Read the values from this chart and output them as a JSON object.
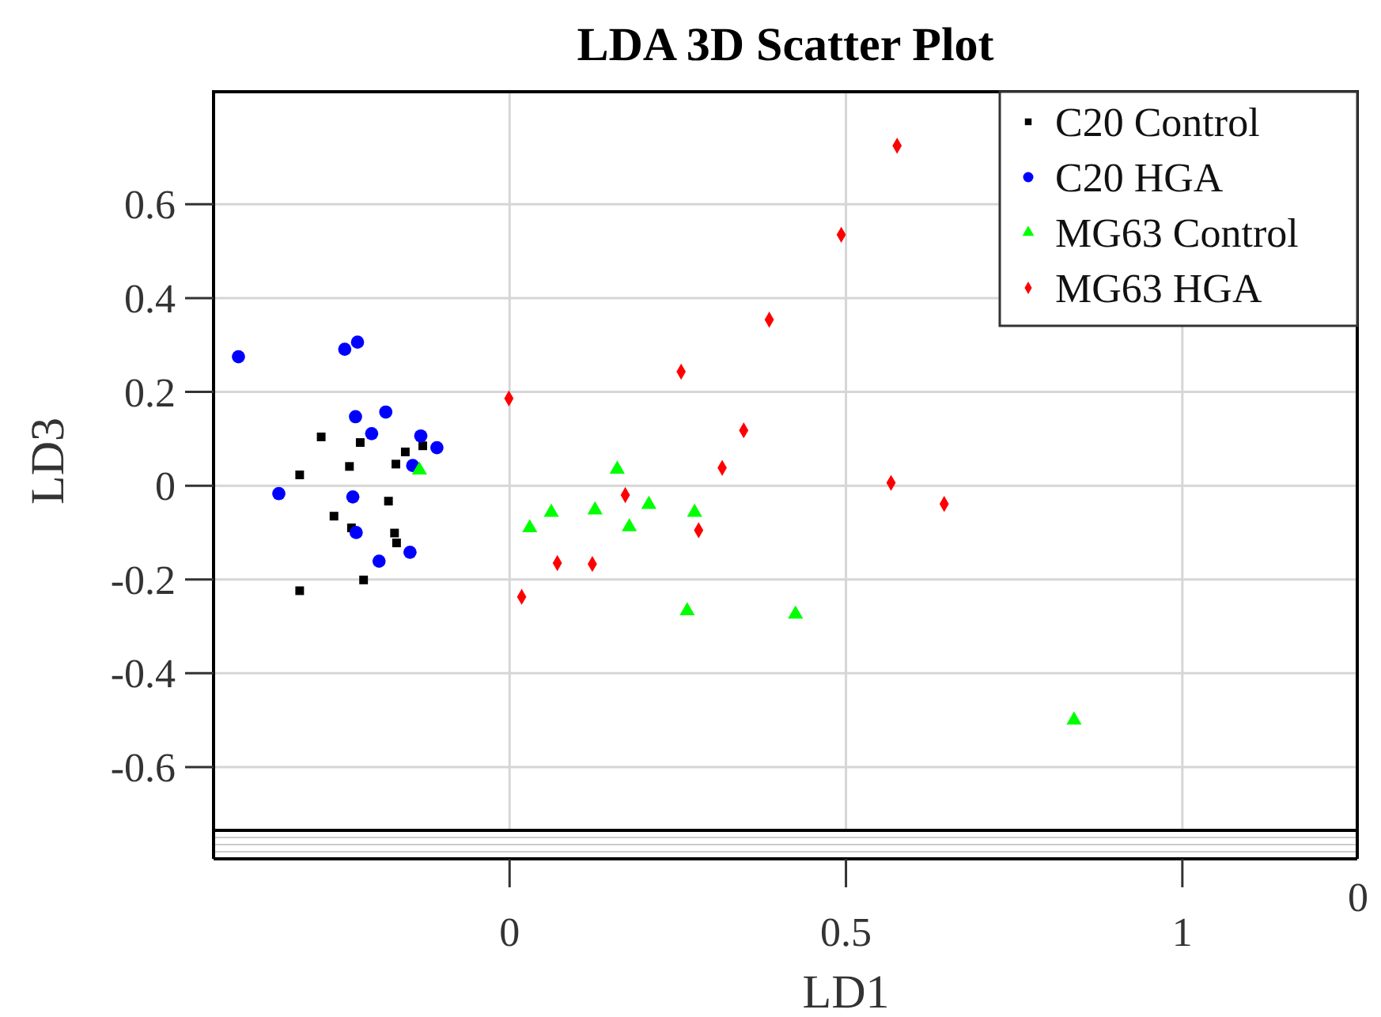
{
  "chart_data": {
    "type": "scatter",
    "title": "LDA 3D Scatter Plot",
    "xlabel": "LD1",
    "ylabel": "LD3",
    "xlim": [
      -0.44,
      1.26
    ],
    "ylim": [
      -0.735,
      0.84
    ],
    "xticks": [
      0,
      0.5,
      1
    ],
    "yticks": [
      -0.6,
      -0.4,
      -0.2,
      0,
      0.2,
      0.4,
      0.6
    ],
    "grid": true,
    "legend": "top right",
    "annotations": [
      "0"
    ],
    "series": [
      {
        "name": "C20 Control",
        "color": "#000000",
        "marker": "square",
        "x": [
          -0.28,
          -0.222,
          -0.155,
          -0.129,
          -0.312,
          -0.238,
          -0.169,
          -0.18,
          -0.261,
          -0.235,
          -0.171,
          -0.168,
          -0.217,
          -0.312
        ],
        "values": [
          0.104,
          0.092,
          0.072,
          0.085,
          0.023,
          0.041,
          0.046,
          -0.033,
          -0.065,
          -0.09,
          -0.101,
          -0.122,
          -0.201,
          -0.224
        ]
      },
      {
        "name": "C20 HGA",
        "color": "#0000ff",
        "marker": "circle",
        "x": [
          -0.403,
          -0.245,
          -0.226,
          -0.229,
          -0.184,
          -0.205,
          -0.132,
          -0.108,
          -0.144,
          -0.343,
          -0.233,
          -0.228,
          -0.148,
          -0.194
        ],
        "values": [
          0.275,
          0.291,
          0.306,
          0.147,
          0.157,
          0.111,
          0.106,
          0.081,
          0.043,
          -0.017,
          -0.024,
          -0.1,
          -0.142,
          -0.161
        ]
      },
      {
        "name": "MG63 Control",
        "color": "#00ff00",
        "marker": "triangle",
        "x": [
          -0.134,
          0.16,
          0.062,
          0.03,
          0.127,
          0.207,
          0.178,
          0.275,
          0.264,
          0.425,
          0.839
        ],
        "values": [
          0.033,
          0.035,
          -0.057,
          -0.09,
          -0.052,
          -0.04,
          -0.088,
          -0.057,
          -0.267,
          -0.274,
          -0.5
        ]
      },
      {
        "name": "MG63 HGA",
        "color": "#ff0000",
        "marker": "diamond",
        "x": [
          0.576,
          0.493,
          0.386,
          0.255,
          -0.001,
          0.348,
          0.316,
          0.567,
          0.646,
          0.172,
          0.281,
          0.071,
          0.123,
          0.018
        ],
        "values": [
          0.725,
          0.535,
          0.354,
          0.243,
          0.186,
          0.118,
          0.038,
          0.006,
          -0.039,
          -0.02,
          -0.095,
          -0.165,
          -0.167,
          -0.237
        ]
      }
    ]
  }
}
